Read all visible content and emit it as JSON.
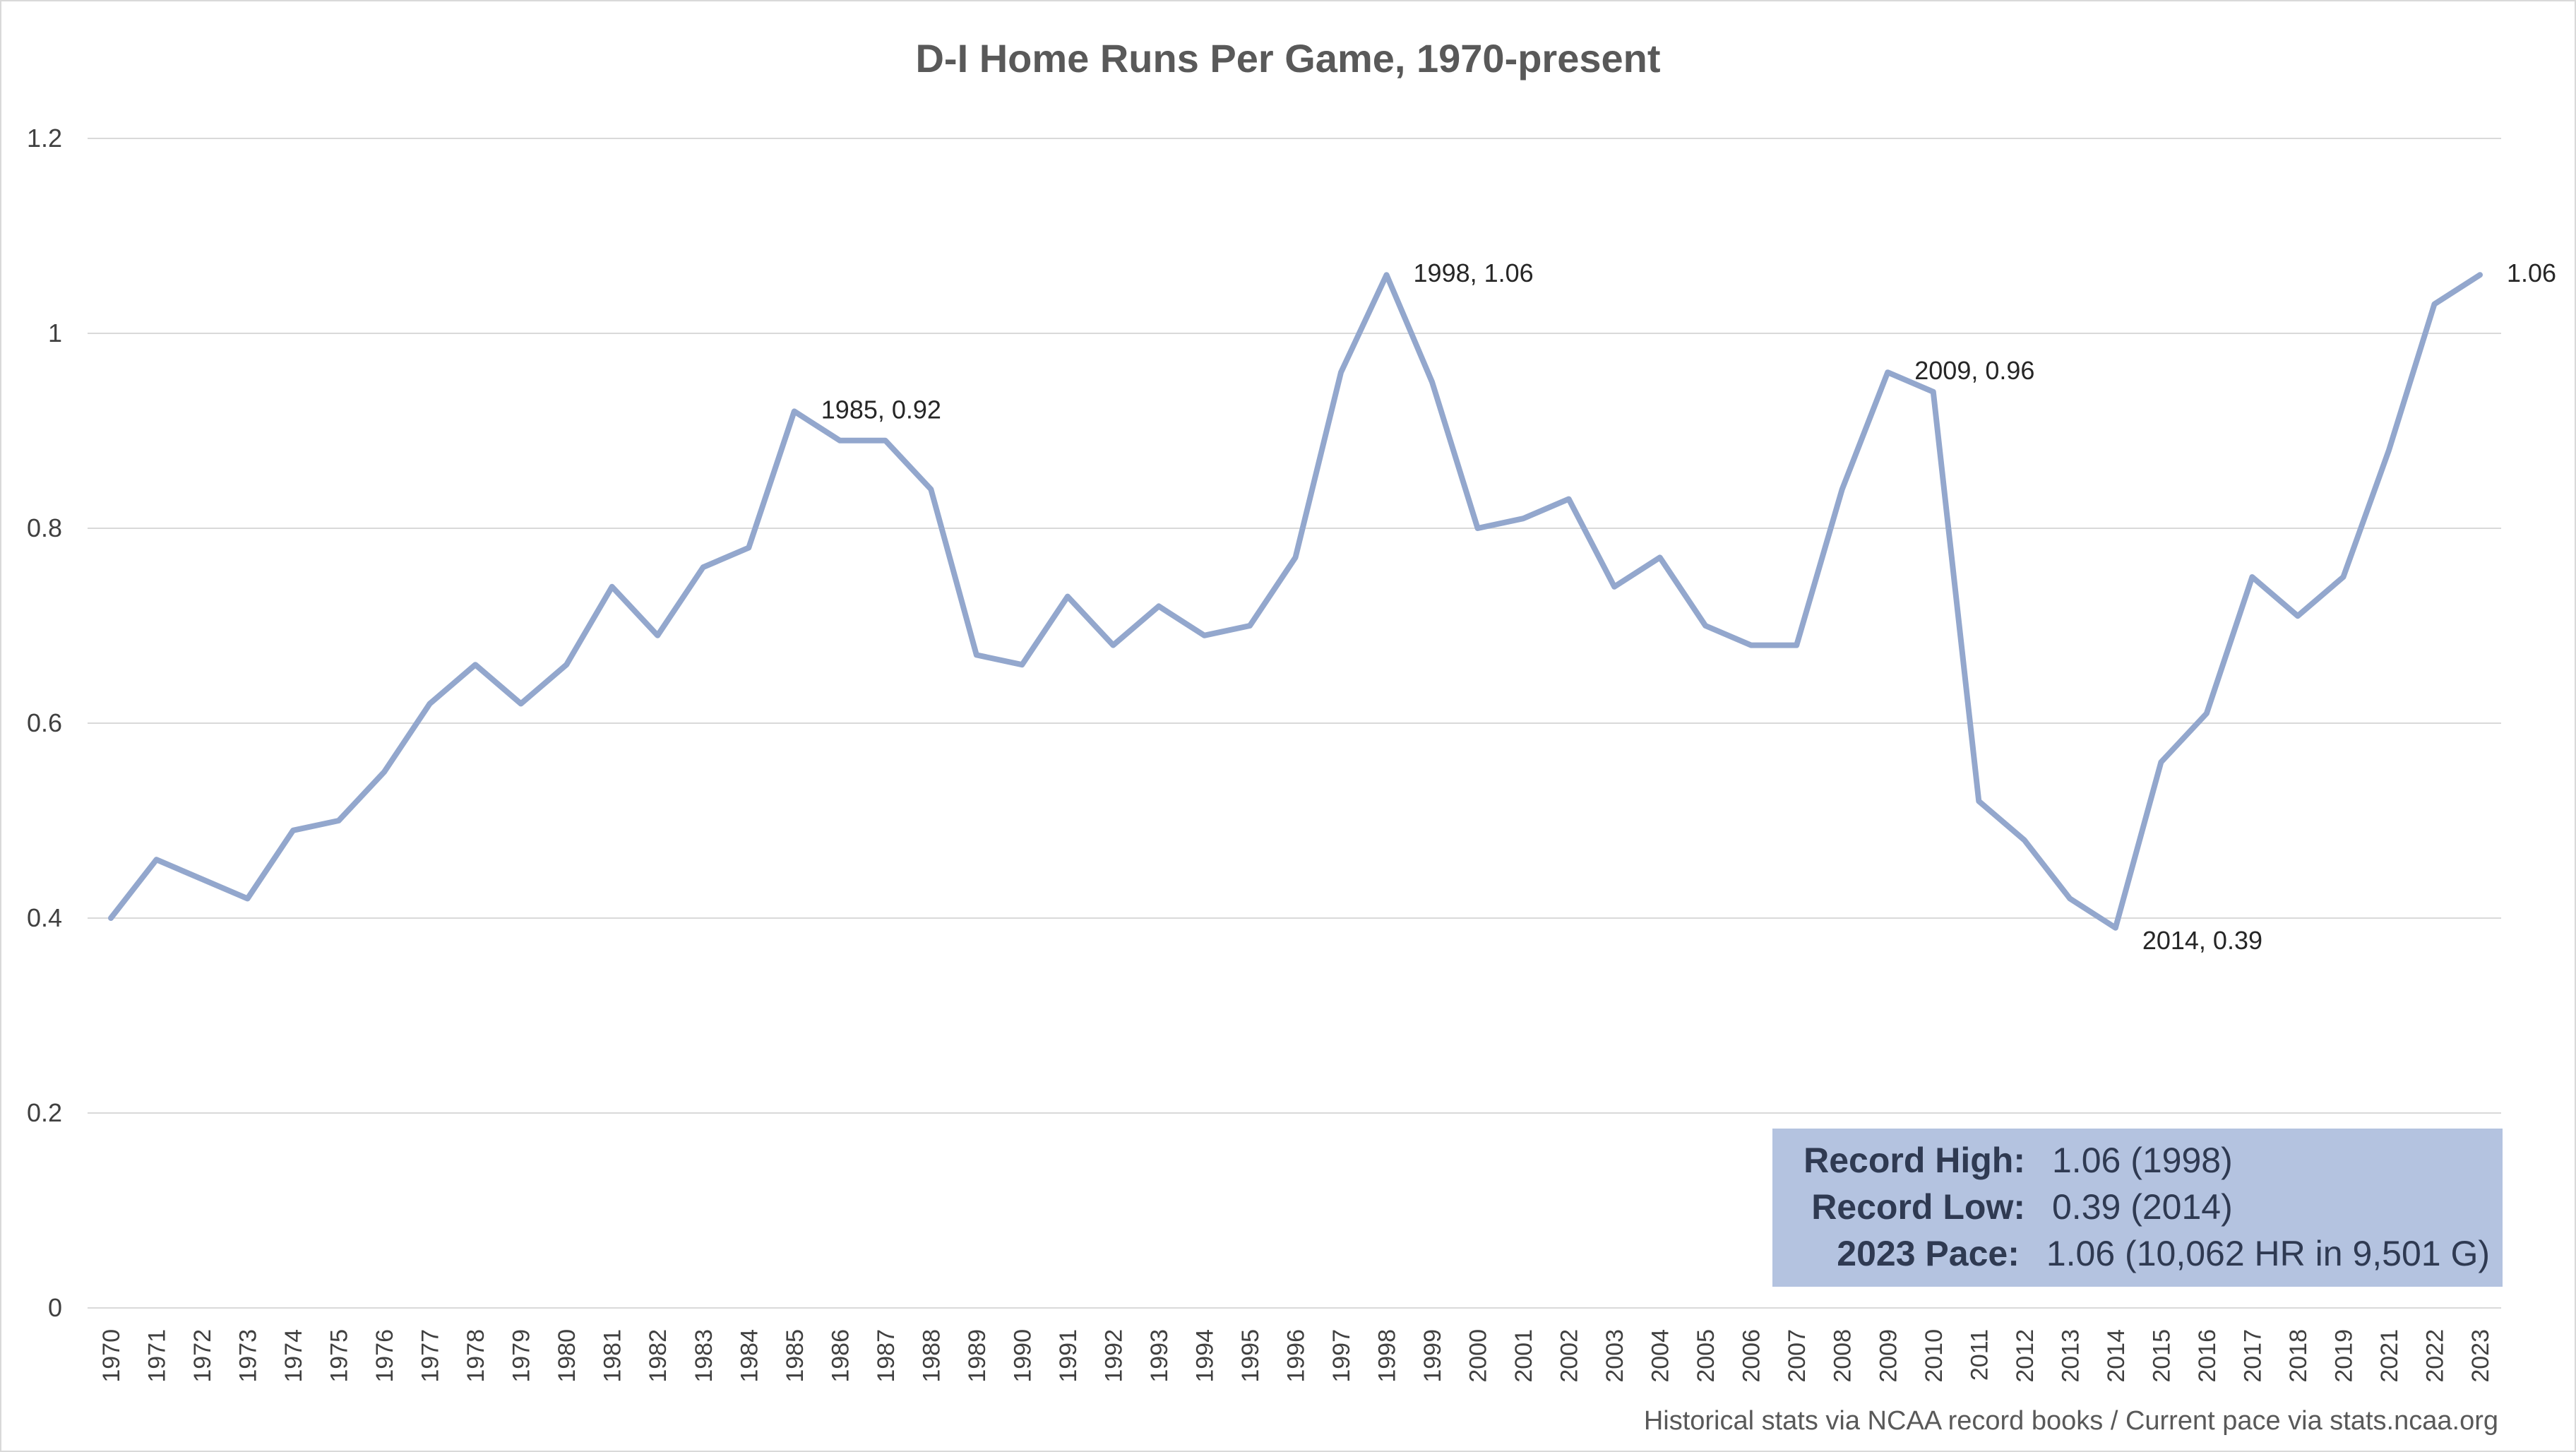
{
  "chart_data": {
    "type": "line",
    "title": "D-I Home Runs Per Game, 1970-present",
    "xlabel": "",
    "ylabel": "",
    "ylim": [
      0,
      1.2
    ],
    "yticks": [
      "0",
      "0.2",
      "0.4",
      "0.6",
      "0.8",
      "1",
      "1.2"
    ],
    "grid": true,
    "legend": "none",
    "categories": [
      "1970",
      "1971",
      "1972",
      "1973",
      "1974",
      "1975",
      "1976",
      "1977",
      "1978",
      "1979",
      "1980",
      "1981",
      "1982",
      "1983",
      "1984",
      "1985",
      "1986",
      "1987",
      "1988",
      "1989",
      "1990",
      "1991",
      "1992",
      "1993",
      "1994",
      "1995",
      "1996",
      "1997",
      "1998",
      "1999",
      "2000",
      "2001",
      "2002",
      "2003",
      "2004",
      "2005",
      "2006",
      "2007",
      "2008",
      "2009",
      "2010",
      "2011",
      "2012",
      "2013",
      "2014",
      "2015",
      "2016",
      "2017",
      "2018",
      "2019",
      "2021",
      "2022",
      "2023"
    ],
    "series": [
      {
        "color": "#93a7cd",
        "values": [
          0.4,
          0.46,
          0.44,
          0.42,
          0.49,
          0.5,
          0.55,
          0.62,
          0.66,
          0.62,
          0.66,
          0.74,
          0.69,
          0.76,
          0.78,
          0.92,
          0.89,
          0.89,
          0.84,
          0.67,
          0.66,
          0.73,
          0.68,
          0.72,
          0.69,
          0.7,
          0.77,
          0.96,
          1.06,
          0.95,
          0.8,
          0.81,
          0.83,
          0.74,
          0.77,
          0.7,
          0.68,
          0.68,
          0.84,
          0.96,
          0.94,
          0.52,
          0.48,
          0.42,
          0.39,
          0.56,
          0.61,
          0.75,
          0.71,
          0.75,
          0.88,
          1.03,
          1.06
        ]
      }
    ],
    "annotations": [
      {
        "category": "1985",
        "text": "1985, 0.92"
      },
      {
        "category": "1998",
        "text": "1998, 1.06"
      },
      {
        "category": "2009",
        "text": "2009, 0.96"
      },
      {
        "category": "2014",
        "text": "2014, 0.39"
      },
      {
        "category": "2023",
        "text": "1.06"
      }
    ],
    "stats_box": {
      "rows": [
        {
          "label": "Record High:",
          "value": "1.06 (1998)"
        },
        {
          "label": "Record Low:",
          "value": "0.39 (2014)"
        },
        {
          "label": "2023 Pace:",
          "value": "1.06 (10,062 HR in 9,501 G)"
        }
      ],
      "color": "#b4c3e0"
    },
    "source": "Historical stats via NCAA record books / Current pace via stats.ncaa.org"
  }
}
